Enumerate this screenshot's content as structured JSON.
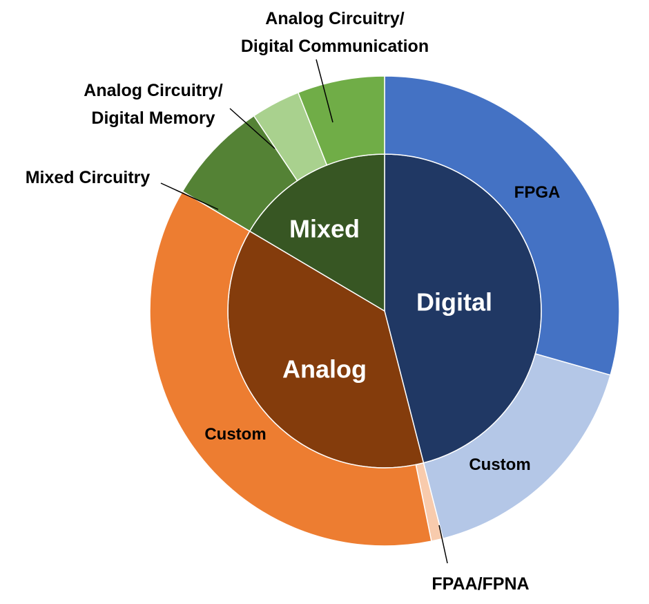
{
  "chart_data": {
    "type": "sunburst",
    "title": "",
    "inner": [
      {
        "name": "Digital",
        "value": 46,
        "color": "#203864"
      },
      {
        "name": "Analog",
        "value": 37.5,
        "color": "#843C0C"
      },
      {
        "name": "Mixed",
        "value": 16.5,
        "color": "#375623"
      }
    ],
    "outer": [
      {
        "name": "FPGA",
        "parent": "Digital",
        "value": 29.4,
        "color": "#4472C4"
      },
      {
        "name": "Custom",
        "parent": "Digital",
        "value": 16.6,
        "color": "#B4C7E7"
      },
      {
        "name": "FPAA/FPNA",
        "parent": "Analog",
        "value": 0.8,
        "color": "#F8CBAD"
      },
      {
        "name": "Custom",
        "parent": "Analog",
        "value": 36.7,
        "color": "#ED7D31"
      },
      {
        "name": "Mixed Circuitry",
        "parent": "Mixed",
        "value": 7.1,
        "color": "#548235"
      },
      {
        "name": "Analog Circuitry/\nDigital Memory",
        "parent": "Mixed",
        "value": 3.4,
        "color": "#A9D18E"
      },
      {
        "name": "Analog Circuitry/\nDigital Communication",
        "parent": "Mixed",
        "value": 6.0,
        "color": "#70AD47"
      }
    ]
  }
}
